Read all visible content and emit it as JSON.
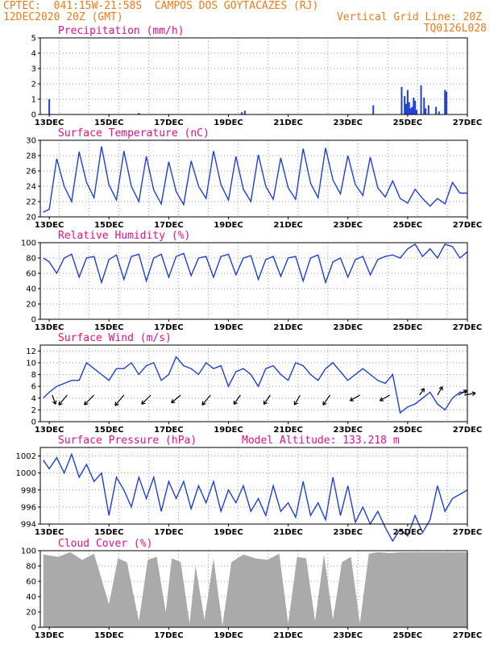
{
  "header": {
    "line1": "CPTEC:  041:15W-21:58S  CAMPOS DOS GOYTACAZES (RJ)",
    "line2_left": "12DEC2020 20Z (GMT)",
    "line2_right": "Vertical Grid Line: 20Z",
    "line3_right": "TQ0126L028"
  },
  "colors": {
    "line": "#1f3fd6",
    "title": "#e0108a",
    "header": "#ee7a1a",
    "cloud": "#aaaaaa",
    "arrow": "#000000"
  },
  "x_axis": {
    "start": "2020-12-12T20Z",
    "end": "2020-12-27",
    "ticks": [
      "13DEC",
      "15DEC",
      "17DEC",
      "19DEC",
      "21DEC",
      "23DEC",
      "25DEC",
      "27DEC"
    ]
  },
  "chart_data": [
    {
      "type": "bar",
      "title": "Precipitation (mm/h)",
      "ylim": [
        0,
        5
      ],
      "yticks": [
        0,
        1,
        2,
        3,
        4,
        5
      ],
      "x_days": [
        13.0,
        16.0,
        19.45,
        19.55,
        23.85,
        24.8,
        24.9,
        24.95,
        25.0,
        25.05,
        25.1,
        25.15,
        25.2,
        25.25,
        25.3,
        25.45,
        25.55,
        25.6,
        25.7,
        25.95,
        26.05,
        26.25,
        26.3
      ],
      "values": [
        1.0,
        0.1,
        0.15,
        0.25,
        0.6,
        1.8,
        1.2,
        0.7,
        1.6,
        0.8,
        0.4,
        0.5,
        1.1,
        0.9,
        0.3,
        1.9,
        1.1,
        0.4,
        0.6,
        0.5,
        0.2,
        1.6,
        1.5
      ]
    },
    {
      "type": "line",
      "title": "Surface Temperature (nC)",
      "ylim": [
        20,
        30
      ],
      "yticks": [
        20,
        22,
        24,
        26,
        28,
        30
      ],
      "x_days": [
        12.8,
        13.0,
        13.25,
        13.5,
        13.75,
        14.0,
        14.25,
        14.5,
        14.75,
        15.0,
        15.25,
        15.5,
        15.75,
        16.0,
        16.25,
        16.5,
        16.75,
        17.0,
        17.25,
        17.5,
        17.75,
        18.0,
        18.25,
        18.5,
        18.75,
        19.0,
        19.25,
        19.5,
        19.75,
        20.0,
        20.25,
        20.5,
        20.75,
        21.0,
        21.25,
        21.5,
        21.75,
        22.0,
        22.25,
        22.5,
        22.75,
        23.0,
        23.25,
        23.5,
        23.75,
        24.0,
        24.25,
        24.5,
        24.75,
        25.0,
        25.25,
        25.5,
        25.75,
        26.0,
        26.25,
        26.5,
        26.75,
        27.0
      ],
      "values": [
        20.6,
        21.0,
        27.6,
        24.0,
        22.0,
        28.5,
        24.5,
        22.5,
        29.2,
        24.2,
        22.2,
        28.6,
        24.0,
        22.0,
        27.9,
        23.5,
        21.7,
        27.2,
        23.3,
        21.6,
        27.3,
        24.0,
        22.4,
        28.6,
        24.2,
        22.2,
        27.9,
        23.6,
        22.0,
        28.1,
        24.0,
        22.3,
        27.7,
        23.8,
        22.3,
        28.9,
        24.4,
        22.5,
        29.0,
        24.8,
        23.0,
        28.0,
        24.2,
        22.8,
        27.8,
        23.8,
        22.6,
        24.7,
        22.4,
        21.8,
        23.6,
        22.4,
        21.4,
        22.4,
        21.7,
        24.5,
        23.1,
        23.1
      ]
    },
    {
      "type": "line",
      "title": "Relative Humidity (%)",
      "ylim": [
        0,
        100
      ],
      "yticks": [
        0,
        20,
        40,
        60,
        80,
        100
      ],
      "x_days": [
        12.8,
        13.0,
        13.25,
        13.5,
        13.75,
        14.0,
        14.25,
        14.5,
        14.75,
        15.0,
        15.25,
        15.5,
        15.75,
        16.0,
        16.25,
        16.5,
        16.75,
        17.0,
        17.25,
        17.5,
        17.75,
        18.0,
        18.25,
        18.5,
        18.75,
        19.0,
        19.25,
        19.5,
        19.75,
        20.0,
        20.25,
        20.5,
        20.75,
        21.0,
        21.25,
        21.5,
        21.75,
        22.0,
        22.25,
        22.5,
        22.75,
        23.0,
        23.25,
        23.5,
        23.75,
        24.0,
        24.25,
        24.5,
        24.75,
        25.0,
        25.25,
        25.5,
        25.75,
        26.0,
        26.25,
        26.5,
        26.75,
        27.0
      ],
      "values": [
        80,
        75,
        60,
        80,
        85,
        55,
        80,
        82,
        48,
        78,
        84,
        52,
        82,
        85,
        50,
        80,
        85,
        55,
        82,
        86,
        57,
        80,
        82,
        55,
        82,
        85,
        58,
        80,
        83,
        52,
        78,
        82,
        56,
        80,
        82,
        50,
        80,
        84,
        48,
        75,
        80,
        55,
        78,
        82,
        58,
        78,
        82,
        84,
        80,
        92,
        98,
        82,
        92,
        80,
        98,
        95,
        80,
        88
      ]
    },
    {
      "type": "line",
      "title": "Surface Wind (m/s)",
      "ylim": [
        0,
        13
      ],
      "yticks": [
        0,
        2,
        4,
        6,
        8,
        10,
        12
      ],
      "x_days": [
        12.8,
        13.0,
        13.25,
        13.5,
        13.75,
        14.0,
        14.25,
        14.5,
        14.75,
        15.0,
        15.25,
        15.5,
        15.75,
        16.0,
        16.25,
        16.5,
        16.75,
        17.0,
        17.25,
        17.5,
        17.75,
        18.0,
        18.25,
        18.5,
        18.75,
        19.0,
        19.25,
        19.5,
        19.75,
        20.0,
        20.25,
        20.5,
        20.75,
        21.0,
        21.25,
        21.5,
        21.75,
        22.0,
        22.25,
        22.5,
        22.75,
        23.0,
        23.25,
        23.5,
        23.75,
        24.0,
        24.25,
        24.5,
        24.75,
        25.0,
        25.25,
        25.5,
        25.75,
        26.0,
        26.25,
        26.5,
        26.75,
        27.0
      ],
      "values": [
        4,
        5,
        6,
        6.5,
        7,
        7,
        10,
        9,
        8,
        7,
        9,
        9,
        10,
        8,
        9.5,
        10,
        7,
        8,
        11,
        9.5,
        9,
        8,
        10,
        9,
        9.5,
        6,
        8.5,
        9,
        8,
        6,
        9,
        9.5,
        8,
        7,
        10,
        9.5,
        8,
        7,
        9,
        10,
        8.5,
        7,
        8,
        9,
        8,
        7,
        6.5,
        8,
        1.5,
        2.5,
        3,
        4,
        5,
        3,
        2,
        4,
        5,
        5
      ]
    },
    {
      "type": "line",
      "title": "Surface Pressure (hPa)",
      "annotation": "Model Altitude: 133.218 m",
      "ylim": [
        994,
        1003
      ],
      "yticks": [
        994,
        996,
        998,
        1000,
        1002
      ],
      "x_days": [
        12.8,
        13.0,
        13.25,
        13.5,
        13.75,
        14.0,
        14.25,
        14.5,
        14.75,
        15.0,
        15.25,
        15.5,
        15.75,
        16.0,
        16.25,
        16.5,
        16.75,
        17.0,
        17.25,
        17.5,
        17.75,
        18.0,
        18.25,
        18.5,
        18.75,
        19.0,
        19.25,
        19.5,
        19.75,
        20.0,
        20.25,
        20.5,
        20.75,
        21.0,
        21.25,
        21.5,
        21.75,
        22.0,
        22.25,
        22.5,
        22.75,
        23.0,
        23.25,
        23.5,
        23.75,
        24.0,
        24.25,
        24.5,
        24.75,
        25.0,
        25.25,
        25.5,
        25.75,
        26.0,
        26.25,
        26.5,
        26.75,
        27.0
      ],
      "values": [
        1001.5,
        1000.5,
        1001.8,
        1000.0,
        1002.2,
        999.5,
        1001.0,
        999.0,
        1000.0,
        995.0,
        999.5,
        998.0,
        996.0,
        999.5,
        997.0,
        999.5,
        995.5,
        999.0,
        997.0,
        999.0,
        995.8,
        998.5,
        996.5,
        999.0,
        995.5,
        998.0,
        996.5,
        998.5,
        995.5,
        997.0,
        995.0,
        998.5,
        995.5,
        996.5,
        994.8,
        999.0,
        995.0,
        996.5,
        994.5,
        999.5,
        995.0,
        998.5,
        994.2,
        996.0,
        994.0,
        995.5,
        993.6,
        992.0,
        993.4,
        992.6,
        995.0,
        993.0,
        994.5,
        998.5,
        995.5,
        997.0,
        997.5,
        998.0
      ]
    },
    {
      "type": "area",
      "title": "Cloud Cover (%)",
      "ylim": [
        0,
        100
      ],
      "yticks": [
        0,
        20,
        40,
        60,
        80,
        100
      ],
      "x_days": [
        12.8,
        13.3,
        13.7,
        14.1,
        14.5,
        15.0,
        15.3,
        15.6,
        16.0,
        16.3,
        16.6,
        16.9,
        17.1,
        17.4,
        17.7,
        17.9,
        18.2,
        18.5,
        18.8,
        19.1,
        19.5,
        19.9,
        20.3,
        20.7,
        21.0,
        21.3,
        21.6,
        21.9,
        22.2,
        22.5,
        22.8,
        23.1,
        23.4,
        23.7,
        24.0,
        24.4,
        24.8,
        25.2,
        25.6,
        26.0,
        26.4,
        26.8,
        27.0
      ],
      "values": [
        95,
        92,
        98,
        88,
        96,
        30,
        90,
        85,
        8,
        88,
        92,
        20,
        90,
        85,
        5,
        80,
        10,
        90,
        2,
        85,
        95,
        90,
        88,
        96,
        5,
        92,
        90,
        8,
        95,
        10,
        85,
        92,
        5,
        96,
        98,
        97,
        98,
        98,
        98,
        98,
        98,
        98,
        98
      ]
    }
  ]
}
